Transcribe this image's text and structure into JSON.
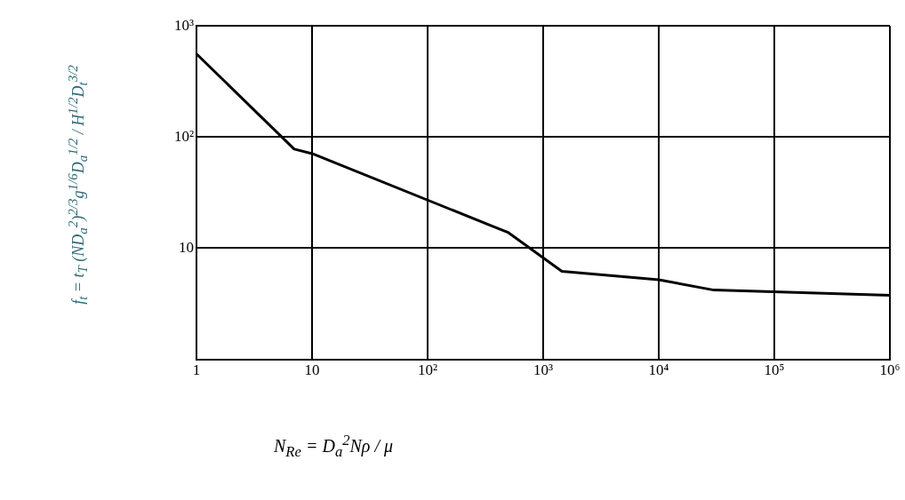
{
  "chart_data": {
    "type": "line",
    "xlabel": "N$_{Re}$ = D$_{a}$$^{2}$Nρ / μ",
    "ylabel": "f$_{t}$ = t$_{T}$ (ND$_{a}$$^{2}$)$^{2/3}$g$^{1/6}$D$_{a}$$^{1/2}$ / H$^{1/2}$D$_{t}$$^{3/2}$",
    "x": [
      1,
      7,
      10,
      500,
      1450,
      10000,
      30000,
      1000000
    ],
    "series": [
      {
        "color": "#000000",
        "values": [
          560,
          78,
          71,
          13.8,
          6.2,
          5.2,
          4.2,
          3.76
        ]
      }
    ],
    "log": "xy",
    "xlim": [
      1,
      1000000
    ],
    "ylim": [
      1,
      1000
    ],
    "xticks": [
      1,
      10,
      {
        "value": 100,
        "label": "10²"
      },
      {
        "value": 1000,
        "label": "10³"
      },
      {
        "value": 10000,
        "label": "10⁴"
      },
      {
        "value": 100000,
        "label": "10⁵"
      },
      {
        "value": 1000000,
        "label": "10⁶"
      }
    ],
    "yticks": [
      {
        "value": 1,
        "label": null
      },
      10,
      {
        "value": 100,
        "label": "10²"
      },
      {
        "value": 1000,
        "label": "10³"
      }
    ],
    "grid": true,
    "legend": false
  }
}
